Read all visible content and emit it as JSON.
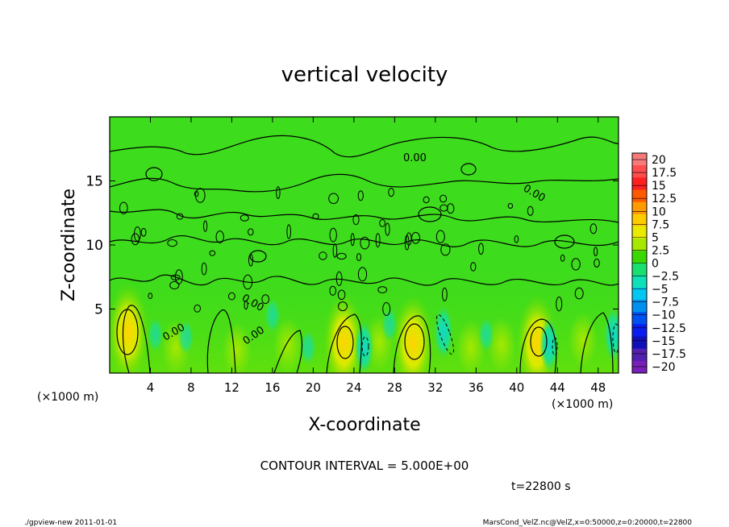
{
  "title": "vertical velocity",
  "xlabel": "X-coordinate",
  "ylabel": "Z-coordinate",
  "x_unit_left": "(×1000 m)",
  "x_unit_right": "(×1000 m)",
  "contour_interval_label": "CONTOUR INTERVAL = 5.000E+00",
  "time_label": "t=22800 s",
  "footer_left": "./gpview-new  2011-01-01",
  "footer_right": "MarsCond_VelZ.nc@VelZ,x=0:50000,z=0:20000,t=22800",
  "contour_labels": [
    "0.00",
    "0.00",
    "0.00",
    "0.00",
    "0.00"
  ],
  "chart_data": {
    "type": "heatmap",
    "title": "vertical velocity",
    "xlabel": "X-coordinate",
    "ylabel": "Z-coordinate",
    "xlim": [
      0,
      50
    ],
    "ylim": [
      0,
      20
    ],
    "x_ticks": [
      "4",
      "8",
      "12",
      "16",
      "20",
      "24",
      "28",
      "32",
      "36",
      "40",
      "44",
      "48"
    ],
    "y_ticks": [
      "5",
      "10",
      "15"
    ],
    "colorbar_ticks": [
      "20",
      "17.5",
      "15",
      "12.5",
      "10",
      "7.5",
      "5",
      "2.5",
      "0",
      "−2.5",
      "−5",
      "−7.5",
      "−10",
      "−12.5",
      "−15",
      "−17.5",
      "−20"
    ],
    "colorbar_colors": [
      "#f87a7a",
      "#ff4c4c",
      "#ff2020",
      "#ff5a00",
      "#ff9a00",
      "#ffcc00",
      "#e8ea00",
      "#a6e800",
      "#38d800",
      "#18e070",
      "#10e0b8",
      "#00c8f0",
      "#0090f0",
      "#0050f0",
      "#0a1ef0",
      "#1010b8",
      "#5020b0",
      "#7a20b8"
    ],
    "background_value_range": [
      -2.5,
      2.5
    ],
    "updraft_cores": [
      {
        "x": 1.8,
        "z": 3.2,
        "max": 7.5
      },
      {
        "x": 23.0,
        "z": 2.4,
        "max": 7.5
      },
      {
        "x": 29.8,
        "z": 2.3,
        "max": 7.5
      },
      {
        "x": 42.0,
        "z": 2.3,
        "max": 7.5
      }
    ],
    "downdraft_zones": [
      {
        "x": 25.0,
        "z": 2.0,
        "min": -5
      },
      {
        "x": 32.8,
        "z": 3.2,
        "min": -5
      },
      {
        "x": 43.2,
        "z": 2.2,
        "min": -5
      },
      {
        "x": 49.5,
        "z": 3.0,
        "min": -5
      }
    ],
    "contour_interval": 5.0
  }
}
